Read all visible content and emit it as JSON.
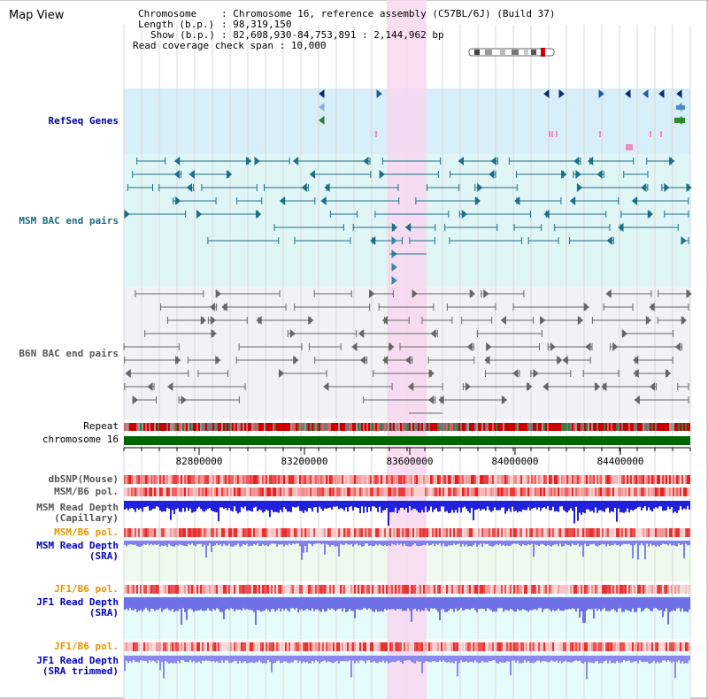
{
  "view_title": "Map View",
  "info": {
    "chromosome_label": "Chromosome",
    "chromosome_value": "Chromosome 16, reference assembly (C57BL/6J) (Build 37)",
    "length_label": "Length (b.p.)",
    "length_value": "98,319,150",
    "show_label": "Show (b.p.)",
    "show_value": "82,608,930-84,753,891 : 2,144,962 bp",
    "coverage_label": "Read coverage check span",
    "coverage_value": "10,000"
  },
  "ruler_ticks": [
    "82800000",
    "83200000",
    "83600000",
    "84000000",
    "84400000"
  ],
  "tracks": {
    "refseq": "RefSeq Genes",
    "msm_bac": "MSM BAC end pairs",
    "b6n_bac": "B6N BAC end pairs",
    "repeat": "Repeat",
    "chromosome": "chromosome 16",
    "dbsnp": "dbSNP(Mouse)",
    "msm_b6_pol_1": "MSM/B6 pol.",
    "msm_depth_cap_1": "MSM Read Depth",
    "msm_depth_cap_2": "(Capillary)",
    "msm_b6_pol_2": "MSM/B6 pol.",
    "msm_depth_sra_1": "MSM Read Depth",
    "msm_depth_sra_2": "(SRA)",
    "jf1_b6_pol_1": "JF1/B6 pol.",
    "jf1_depth_sra_1": "JF1 Read Depth",
    "jf1_depth_sra_2": "(SRA)",
    "jf1_b6_pol_2": "JF1/B6 pol.",
    "jf1_depth_trim_1": "JF1 Read Depth",
    "jf1_depth_trim_2": "(SRA trimmed)"
  },
  "colors": {
    "refseq_label": "#000099",
    "msm_bac_label": "#1a6b80",
    "b6n_bac_label": "#555555",
    "orange_label": "#e69500",
    "blue_label": "#0000bb",
    "highlight": "#f8d8f0",
    "refseq_bg": "#d8eef8",
    "msm_bac_bg": "#e0f6f6",
    "b6n_bac_bg": "#f0f2f6",
    "chromosome_bar": "#006600"
  }
}
